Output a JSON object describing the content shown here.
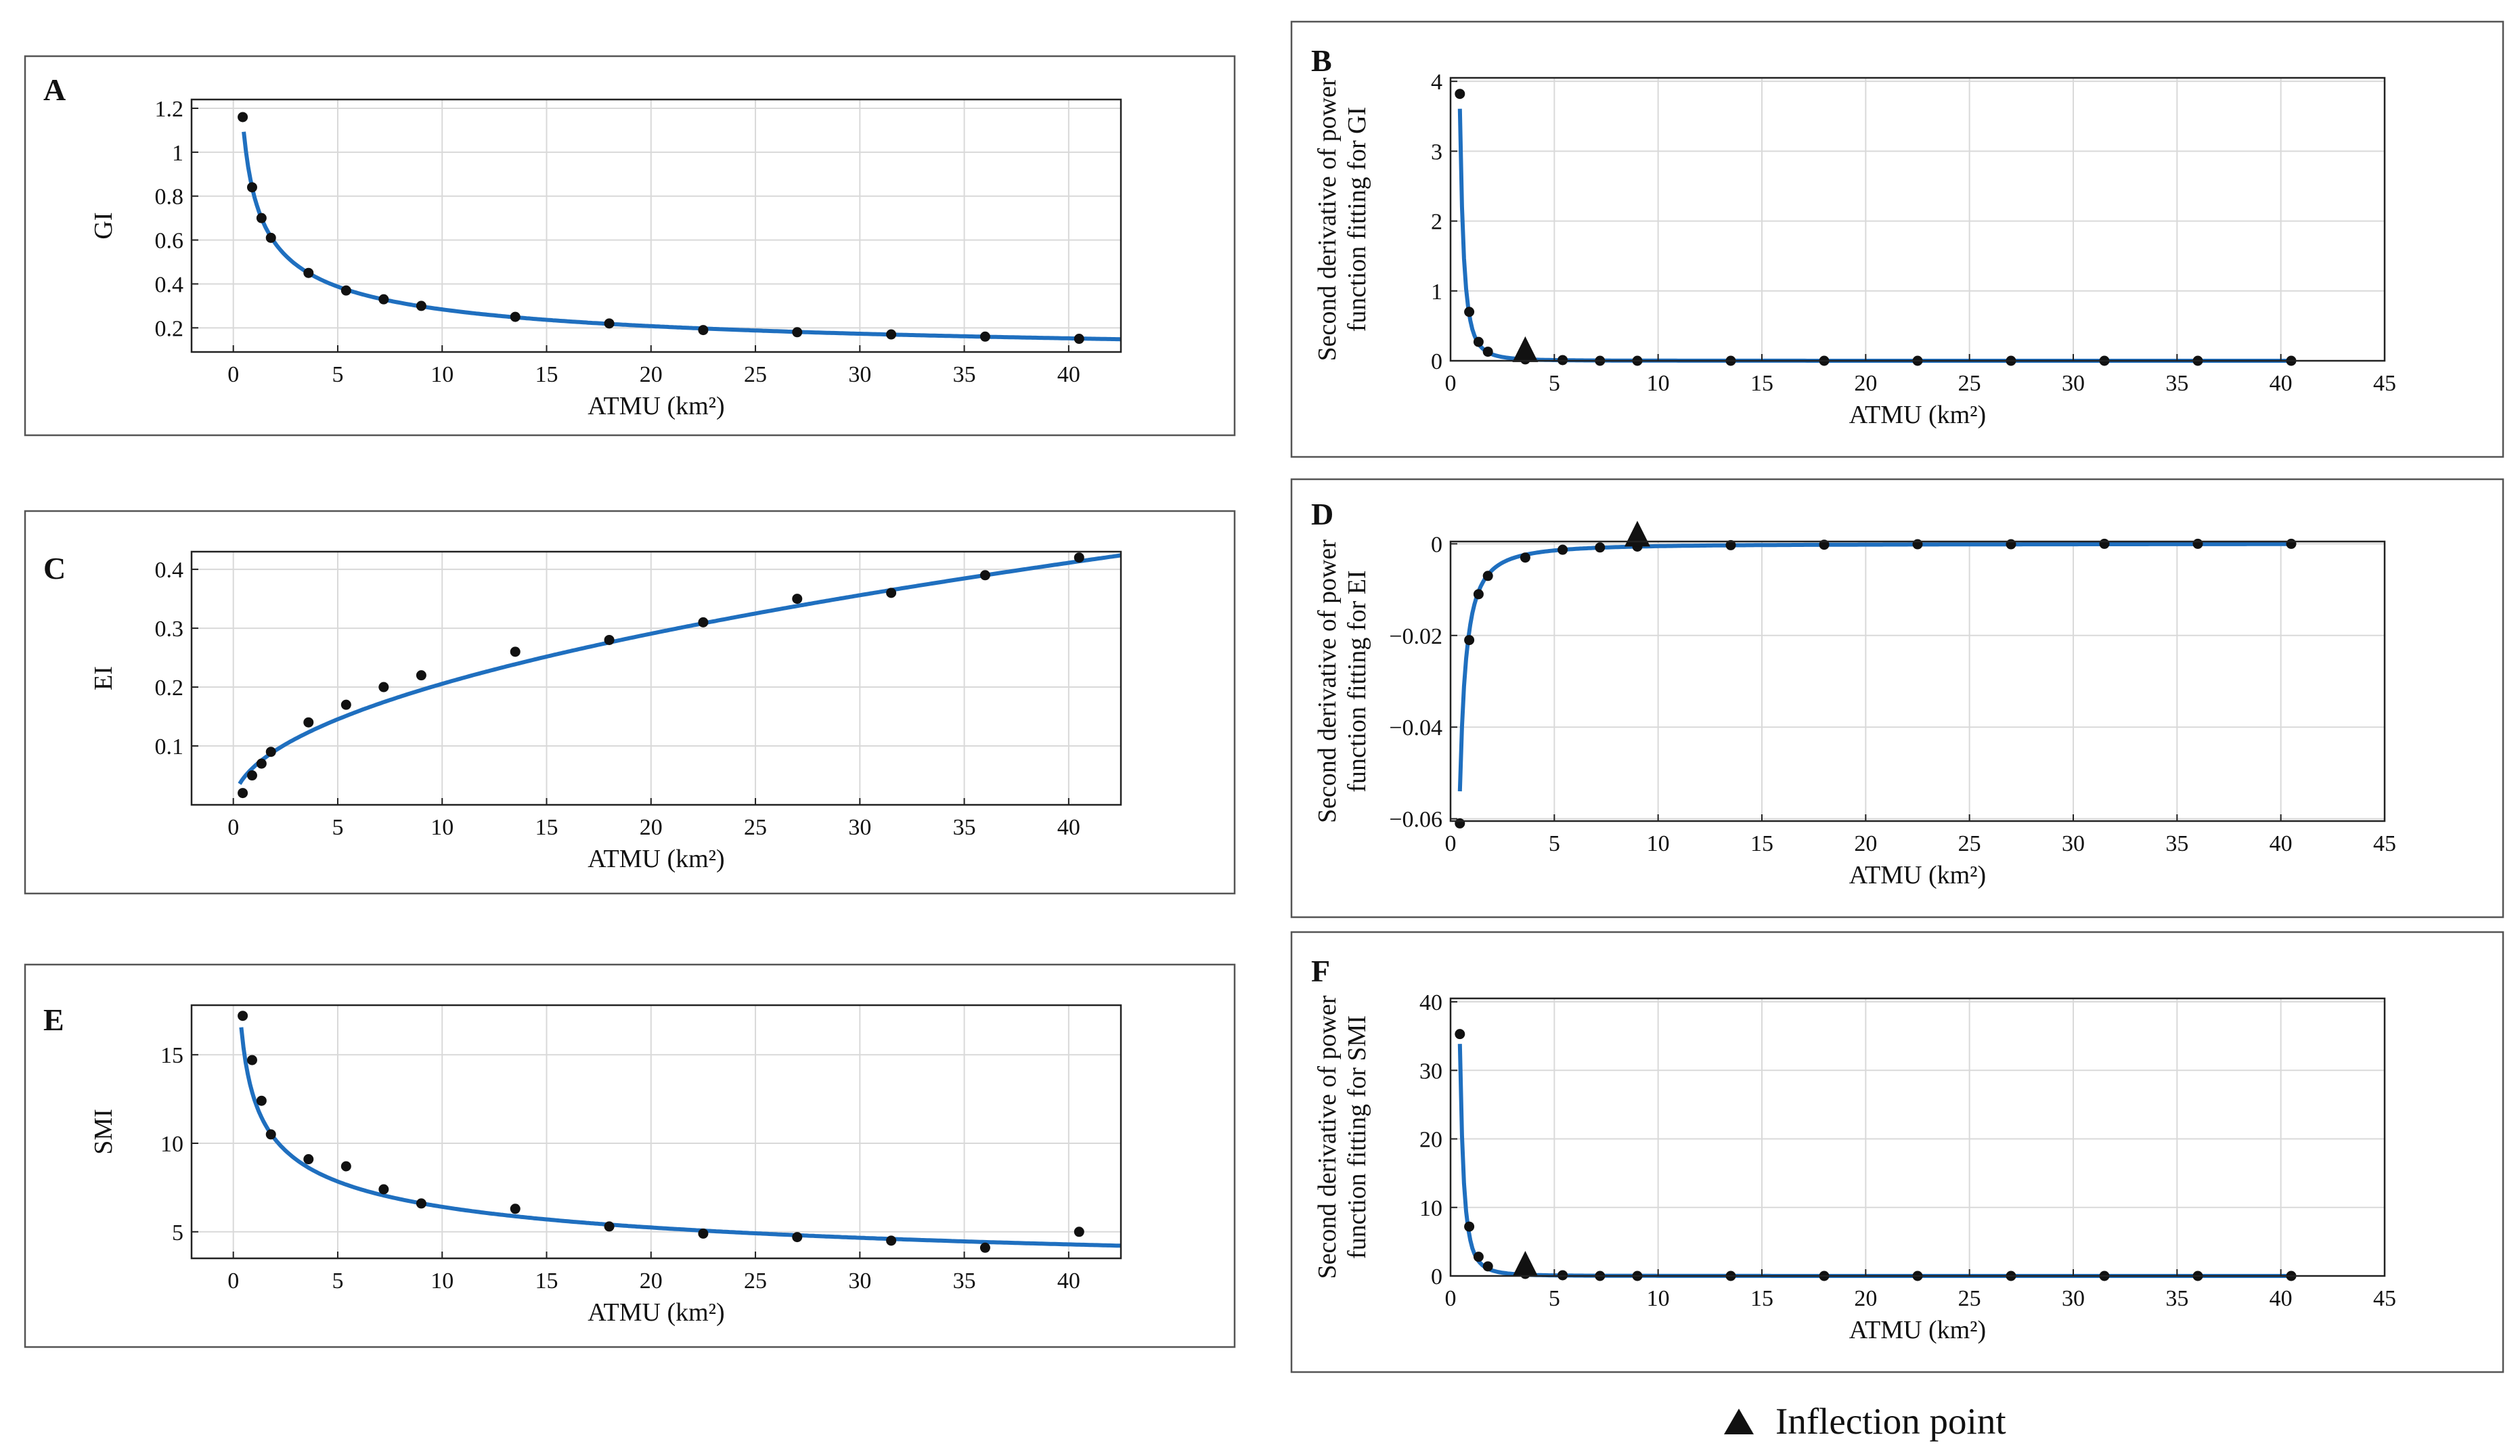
{
  "legend": {
    "inflection_label": "Inflection point",
    "marker": "triangle-icon"
  },
  "colors": {
    "curve": "#1f6fbf",
    "points": "#111111",
    "grid": "#d9d9d9",
    "frame": "#222222",
    "marker": "#111111"
  },
  "chart_data": [
    {
      "panel": "A",
      "type": "line",
      "title": "",
      "xlabel": "ATMU (km²)",
      "ylabel": [
        "GI"
      ],
      "xlim": [
        -2,
        42.5
      ],
      "ylim": [
        0.09,
        1.24
      ],
      "xticks": [
        0,
        5,
        10,
        15,
        20,
        25,
        30,
        35,
        40
      ],
      "yticks": [
        0.2,
        0.4,
        0.6,
        0.8,
        1,
        1.2
      ],
      "ytick_labels": [
        "0.2",
        "0.4",
        "0.6",
        "0.8",
        "1",
        "1.2"
      ],
      "fit": {
        "a": 0.8,
        "b": -0.45,
        "x_from": 0.5,
        "x_to": 42.5
      },
      "x": [
        0.45,
        0.9,
        1.35,
        1.8,
        3.6,
        5.4,
        7.2,
        9.0,
        13.5,
        18.0,
        22.5,
        27.0,
        31.5,
        36.0,
        40.5
      ],
      "y": [
        1.16,
        0.84,
        0.7,
        0.61,
        0.45,
        0.37,
        0.33,
        0.3,
        0.25,
        0.22,
        0.19,
        0.18,
        0.17,
        0.16,
        0.15
      ]
    },
    {
      "panel": "B",
      "type": "line",
      "title": "",
      "xlabel": "ATMU (km²)",
      "ylabel": [
        "Second derivative of power",
        "function fitting for GI"
      ],
      "xlim": [
        0,
        45
      ],
      "ylim": [
        0,
        4.05
      ],
      "xticks": [
        0,
        5,
        10,
        15,
        20,
        25,
        30,
        35,
        40,
        45
      ],
      "yticks": [
        0,
        1,
        2,
        3,
        4
      ],
      "ytick_labels": [
        "0",
        "1",
        "2",
        "3",
        "4"
      ],
      "fit": {
        "a": 0.51,
        "b": -2.45,
        "x_from": 0.45,
        "x_to": 40.5
      },
      "x": [
        0.45,
        0.9,
        1.35,
        1.8,
        3.6,
        5.4,
        7.2,
        9.0,
        13.5,
        18.0,
        22.5,
        27.0,
        31.5,
        36.0,
        40.5
      ],
      "y": [
        3.82,
        0.7,
        0.27,
        0.13,
        0.02,
        0.01,
        0.0,
        0.0,
        0.0,
        0.0,
        0.0,
        0.0,
        0.0,
        0.0,
        0.0
      ],
      "inflection": {
        "x": 3.6,
        "y": 0.02
      }
    },
    {
      "panel": "C",
      "type": "line",
      "title": "",
      "xlabel": "ATMU (km²)",
      "ylabel": [
        "EI"
      ],
      "xlim": [
        -2,
        42.5
      ],
      "ylim": [
        0,
        0.43
      ],
      "xticks": [
        0,
        5,
        10,
        15,
        20,
        25,
        30,
        35,
        40
      ],
      "yticks": [
        0.1,
        0.2,
        0.3,
        0.4
      ],
      "ytick_labels": [
        "0.1",
        "0.2",
        "0.3",
        "0.4"
      ],
      "fit": {
        "a": 0.065,
        "b": 0.5,
        "x_from": 0.3,
        "x_to": 42.5
      },
      "x": [
        0.45,
        0.9,
        1.35,
        1.8,
        3.6,
        5.4,
        7.2,
        9.0,
        13.5,
        18.0,
        22.5,
        27.0,
        31.5,
        36.0,
        40.5
      ],
      "y": [
        0.02,
        0.05,
        0.07,
        0.09,
        0.14,
        0.17,
        0.2,
        0.22,
        0.26,
        0.28,
        0.31,
        0.35,
        0.36,
        0.39,
        0.42
      ]
    },
    {
      "panel": "D",
      "type": "line",
      "title": "",
      "xlabel": "ATMU (km²)",
      "ylabel": [
        "Second derivative of power",
        "function fitting for EI"
      ],
      "xlim": [
        0,
        45
      ],
      "ylim": [
        -0.0605,
        0.0005
      ],
      "xticks": [
        0,
        5,
        10,
        15,
        20,
        25,
        30,
        35,
        40,
        45
      ],
      "yticks": [
        0,
        -0.02,
        -0.04,
        -0.06
      ],
      "ytick_labels": [
        "0",
        "−0.02",
        "−0.04",
        "−0.06"
      ],
      "fit": {
        "a": -0.0163,
        "b": -1.5,
        "x_from": 0.45,
        "x_to": 40.5
      },
      "x": [
        0.45,
        0.9,
        1.35,
        1.8,
        3.6,
        5.4,
        7.2,
        9.0,
        13.5,
        18.0,
        22.5,
        27.0,
        31.5,
        36.0,
        40.5
      ],
      "y": [
        -0.061,
        -0.021,
        -0.011,
        -0.007,
        -0.003,
        -0.0013,
        -0.0008,
        -0.0006,
        -0.0003,
        -0.0002,
        -0.0001,
        -0.0001,
        0.0,
        0.0,
        0.0
      ],
      "inflection": {
        "x": 9.0,
        "y": 0.0
      }
    },
    {
      "panel": "E",
      "type": "line",
      "title": "",
      "xlabel": "ATMU (km²)",
      "ylabel": [
        "SMI"
      ],
      "xlim": [
        -2,
        42.5
      ],
      "ylim": [
        3.5,
        17.8
      ],
      "xticks": [
        0,
        5,
        10,
        15,
        20,
        25,
        30,
        35,
        40
      ],
      "yticks": [
        5,
        10,
        15
      ],
      "ytick_labels": [
        "5",
        "10",
        "15"
      ],
      "fit": {
        "a": 12.5,
        "b": -0.29,
        "x_from": 0.38,
        "x_to": 42.5
      },
      "x": [
        0.45,
        0.9,
        1.35,
        1.8,
        3.6,
        5.4,
        7.2,
        9.0,
        13.5,
        18.0,
        22.5,
        27.0,
        31.5,
        36.0,
        40.5
      ],
      "y": [
        17.2,
        14.7,
        12.4,
        10.5,
        9.1,
        8.7,
        7.4,
        6.6,
        6.3,
        5.3,
        4.9,
        4.7,
        4.5,
        4.1,
        5.0
      ]
    },
    {
      "panel": "F",
      "type": "line",
      "title": "",
      "xlabel": "ATMU (km²)",
      "ylabel": [
        "Second derivative of power",
        "function fitting for SMI"
      ],
      "xlim": [
        0,
        45
      ],
      "ylim": [
        0,
        40.5
      ],
      "xticks": [
        0,
        5,
        10,
        15,
        20,
        25,
        30,
        35,
        40,
        45
      ],
      "yticks": [
        0,
        10,
        20,
        30,
        40
      ],
      "ytick_labels": [
        "0",
        "10",
        "20",
        "30",
        "40"
      ],
      "fit": {
        "a": 4.6,
        "b": -2.5,
        "x_from": 0.45,
        "x_to": 40.5
      },
      "x": [
        0.45,
        0.9,
        1.35,
        1.8,
        3.6,
        5.4,
        7.2,
        9.0,
        13.5,
        18.0,
        22.5,
        27.0,
        31.5,
        36.0,
        40.5
      ],
      "y": [
        35.3,
        7.2,
        2.8,
        1.4,
        0.3,
        0.1,
        0.0,
        0.0,
        0.0,
        0.0,
        0.0,
        0.0,
        0.0,
        0.0,
        0.0
      ],
      "inflection": {
        "x": 3.6,
        "y": 0.3
      }
    }
  ]
}
